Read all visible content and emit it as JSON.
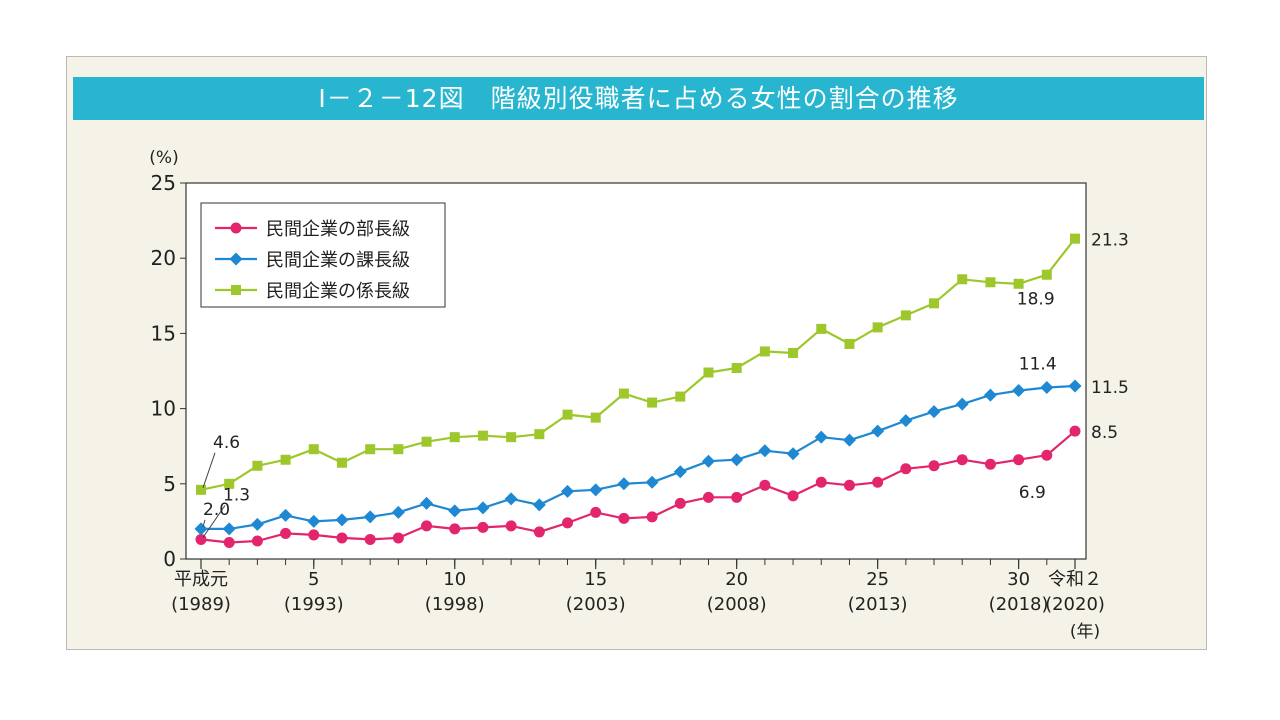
{
  "figure": {
    "title": "Ⅰ－２－12図　階級別役職者に占める女性の割合の推移"
  },
  "chart_data": {
    "type": "line",
    "title": "Ⅰ－２－12図　階級別役職者に占める女性の割合の推移",
    "ylabel": "(%)",
    "xlabel": "(年)",
    "ylim": [
      0,
      25
    ],
    "yticks": [
      "0",
      "5",
      "10",
      "15",
      "20",
      "25"
    ],
    "x": [
      1989,
      1990,
      1991,
      1992,
      1993,
      1994,
      1995,
      1996,
      1997,
      1998,
      1999,
      2000,
      2001,
      2002,
      2003,
      2004,
      2005,
      2006,
      2007,
      2008,
      2009,
      2010,
      2011,
      2012,
      2013,
      2014,
      2015,
      2016,
      2017,
      2018,
      2019,
      2020
    ],
    "xlim": [
      1989,
      2020
    ],
    "xticks": [
      {
        "x": 1989,
        "line1": "平成元",
        "line2": "(1989)"
      },
      {
        "x": 1993,
        "line1": "5",
        "line2": "(1993)"
      },
      {
        "x": 1998,
        "line1": "10",
        "line2": "(1998)"
      },
      {
        "x": 2003,
        "line1": "15",
        "line2": "(2003)"
      },
      {
        "x": 2008,
        "line1": "20",
        "line2": "(2008)"
      },
      {
        "x": 2013,
        "line1": "25",
        "line2": "(2013)"
      },
      {
        "x": 2018,
        "line1": "30",
        "line2": "(2018)"
      },
      {
        "x": 2020,
        "line1": "令和２",
        "line2": "(2020)"
      }
    ],
    "grid": false,
    "legend_position": "top-left",
    "series": [
      {
        "name": "民間企業の部長級",
        "color": "#e2256d",
        "marker": "circle",
        "values": [
          1.3,
          1.1,
          1.2,
          1.7,
          1.6,
          1.4,
          1.3,
          1.4,
          2.2,
          2.0,
          2.1,
          2.2,
          1.8,
          2.4,
          3.1,
          2.7,
          2.8,
          3.7,
          4.1,
          4.1,
          4.9,
          4.2,
          5.1,
          4.9,
          5.1,
          6.0,
          6.2,
          6.6,
          6.3,
          6.6,
          6.9,
          8.5
        ]
      },
      {
        "name": "民間企業の課長級",
        "color": "#1e88d2",
        "marker": "diamond",
        "values": [
          2.0,
          2.0,
          2.3,
          2.9,
          2.5,
          2.6,
          2.8,
          3.1,
          3.7,
          3.2,
          3.4,
          4.0,
          3.6,
          4.5,
          4.6,
          5.0,
          5.1,
          5.8,
          6.5,
          6.6,
          7.2,
          7.0,
          8.1,
          7.9,
          8.5,
          9.2,
          9.8,
          10.3,
          10.9,
          11.2,
          11.4,
          11.5
        ]
      },
      {
        "name": "民間企業の係長級",
        "color": "#9dc72b",
        "marker": "square",
        "values": [
          4.6,
          5.0,
          6.2,
          6.6,
          7.3,
          6.4,
          7.3,
          7.3,
          7.8,
          8.1,
          8.2,
          8.1,
          8.3,
          9.6,
          9.4,
          11.0,
          10.4,
          10.8,
          12.4,
          12.7,
          13.8,
          13.7,
          15.3,
          14.3,
          15.4,
          16.2,
          17.0,
          18.6,
          18.4,
          18.3,
          18.9,
          21.3
        ]
      }
    ],
    "annotations": [
      {
        "series": 0,
        "x": 1989,
        "text": "1.3"
      },
      {
        "series": 1,
        "x": 1989,
        "text": "2.0"
      },
      {
        "series": 2,
        "x": 1989,
        "text": "4.6"
      },
      {
        "series": 0,
        "x": 2019,
        "text": "6.9"
      },
      {
        "series": 1,
        "x": 2019,
        "text": "11.4"
      },
      {
        "series": 2,
        "x": 2019,
        "text": "18.9"
      },
      {
        "series": 0,
        "x": 2020,
        "text": "8.5"
      },
      {
        "series": 1,
        "x": 2020,
        "text": "11.5"
      },
      {
        "series": 2,
        "x": 2020,
        "text": "21.3"
      }
    ]
  }
}
